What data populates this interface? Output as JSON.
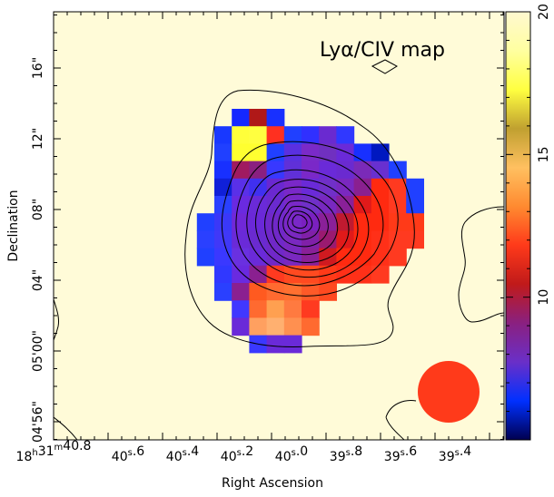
{
  "chart_data": {
    "type": "heatmap",
    "title": "Lyα/CIV map",
    "xlabel": "Right Ascension",
    "ylabel": "Declination",
    "x_ticks": [
      "18h31m40.8s",
      "40.6s",
      "40.4s",
      "40.2s",
      "40.0s",
      "39.8s",
      "39.6s",
      "39.4s"
    ],
    "x_ticks_display": [
      {
        "main": "18",
        "sup": "h",
        "main2": "31",
        "sup2": "m",
        "main3": "40.8"
      },
      {
        "main": "40",
        "sup": "s",
        "main2": ".6"
      },
      {
        "main": "40",
        "sup": "s",
        "main2": ".4"
      },
      {
        "main": "40",
        "sup": "s",
        "main2": ".2"
      },
      {
        "main": "40",
        "sup": "s",
        "main2": ".0"
      },
      {
        "main": "39",
        "sup": "s",
        "main2": ".8"
      },
      {
        "main": "39",
        "sup": "s",
        "main2": ".6"
      },
      {
        "main": "39",
        "sup": "s",
        "main2": ".4"
      }
    ],
    "y_ticks": [
      "-4°56\"",
      "-4°05'00\"",
      "04\"",
      "08\"",
      "12\"",
      "16\""
    ],
    "y_ticks_display": [
      "04'56\"",
      "05'00\"",
      "04\"",
      "08\"",
      "12\"",
      "16\""
    ],
    "colorbar": {
      "min": 5,
      "max": 20,
      "ticks": [
        10,
        15,
        20
      ],
      "colormap": [
        "#000050",
        "#0030ff",
        "#6a2fc8",
        "#8a2080",
        "#c01a1a",
        "#ff3a1a",
        "#ff8a30",
        "#ffc060",
        "#c0a030",
        "#ffff40",
        "#ffffa0",
        "#fff8d0"
      ]
    },
    "background_color": "#fffbd8",
    "beam_color": "#ff3a1a",
    "pixels": [
      {
        "col": 6,
        "row": 0,
        "color": "#1428ff"
      },
      {
        "col": 7,
        "row": 0,
        "color": "#b01818"
      },
      {
        "col": 8,
        "row": 0,
        "color": "#1830ff"
      },
      {
        "col": 5,
        "row": 1,
        "color": "#1838ff"
      },
      {
        "col": 6,
        "row": 1,
        "color": "#ffff3a"
      },
      {
        "col": 7,
        "row": 1,
        "color": "#ffff40"
      },
      {
        "col": 8,
        "row": 1,
        "color": "#ff3020"
      },
      {
        "col": 9,
        "row": 1,
        "color": "#2040ff"
      },
      {
        "col": 10,
        "row": 1,
        "color": "#3030ff"
      },
      {
        "col": 11,
        "row": 1,
        "color": "#6a2ad0"
      },
      {
        "col": 12,
        "row": 1,
        "color": "#3038ff"
      },
      {
        "col": 5,
        "row": 2,
        "color": "#2040ff"
      },
      {
        "col": 6,
        "row": 2,
        "color": "#ffff30"
      },
      {
        "col": 7,
        "row": 2,
        "color": "#ffff30"
      },
      {
        "col": 8,
        "row": 2,
        "color": "#2040ff"
      },
      {
        "col": 9,
        "row": 2,
        "color": "#5a30e0"
      },
      {
        "col": 10,
        "row": 2,
        "color": "#7a2ac8"
      },
      {
        "col": 11,
        "row": 2,
        "color": "#7030c0"
      },
      {
        "col": 12,
        "row": 2,
        "color": "#6a2ad8"
      },
      {
        "col": 13,
        "row": 2,
        "color": "#1830ff"
      },
      {
        "col": 14,
        "row": 2,
        "color": "#0018c0"
      },
      {
        "col": 5,
        "row": 3,
        "color": "#1830ff"
      },
      {
        "col": 6,
        "row": 3,
        "color": "#a01a60"
      },
      {
        "col": 7,
        "row": 3,
        "color": "#8a2080"
      },
      {
        "col": 8,
        "row": 3,
        "color": "#3838ff"
      },
      {
        "col": 9,
        "row": 3,
        "color": "#6030d8"
      },
      {
        "col": 10,
        "row": 3,
        "color": "#7a28c8"
      },
      {
        "col": 11,
        "row": 3,
        "color": "#6a2ad8"
      },
      {
        "col": 12,
        "row": 3,
        "color": "#6a2ad0"
      },
      {
        "col": 13,
        "row": 3,
        "color": "#7a2ab8"
      },
      {
        "col": 14,
        "row": 3,
        "color": "#6830d0"
      },
      {
        "col": 15,
        "row": 3,
        "color": "#2040ff"
      },
      {
        "col": 5,
        "row": 4,
        "color": "#1020d8"
      },
      {
        "col": 6,
        "row": 4,
        "color": "#5a30e8"
      },
      {
        "col": 7,
        "row": 4,
        "color": "#4030f0"
      },
      {
        "col": 8,
        "row": 4,
        "color": "#6a28d0"
      },
      {
        "col": 9,
        "row": 4,
        "color": "#7a28c8"
      },
      {
        "col": 10,
        "row": 4,
        "color": "#6a2ad8"
      },
      {
        "col": 11,
        "row": 4,
        "color": "#7030c8"
      },
      {
        "col": 12,
        "row": 4,
        "color": "#7a28c0"
      },
      {
        "col": 13,
        "row": 4,
        "color": "#8a2090"
      },
      {
        "col": 14,
        "row": 4,
        "color": "#ff2a10"
      },
      {
        "col": 15,
        "row": 4,
        "color": "#ff3a20"
      },
      {
        "col": 16,
        "row": 4,
        "color": "#2040ff"
      },
      {
        "col": 5,
        "row": 5,
        "color": "#2a40ff"
      },
      {
        "col": 6,
        "row": 5,
        "color": "#6a2ae0"
      },
      {
        "col": 7,
        "row": 5,
        "color": "#6a2ad8"
      },
      {
        "col": 8,
        "row": 5,
        "color": "#6a2ad0"
      },
      {
        "col": 9,
        "row": 5,
        "color": "#7a28c8"
      },
      {
        "col": 10,
        "row": 5,
        "color": "#7030c8"
      },
      {
        "col": 11,
        "row": 5,
        "color": "#7828c0"
      },
      {
        "col": 12,
        "row": 5,
        "color": "#8a2098"
      },
      {
        "col": 13,
        "row": 5,
        "color": "#e01a1a"
      },
      {
        "col": 14,
        "row": 5,
        "color": "#ff2a10"
      },
      {
        "col": 15,
        "row": 5,
        "color": "#ff3a20"
      },
      {
        "col": 16,
        "row": 5,
        "color": "#2040ff"
      },
      {
        "col": 4,
        "row": 6,
        "color": "#2040ff"
      },
      {
        "col": 5,
        "row": 6,
        "color": "#3a38f8"
      },
      {
        "col": 6,
        "row": 6,
        "color": "#7028d8"
      },
      {
        "col": 7,
        "row": 6,
        "color": "#6a28d8"
      },
      {
        "col": 8,
        "row": 6,
        "color": "#7028c8"
      },
      {
        "col": 9,
        "row": 6,
        "color": "#7a28c8"
      },
      {
        "col": 10,
        "row": 6,
        "color": "#7a20c0"
      },
      {
        "col": 11,
        "row": 6,
        "color": "#8a2098"
      },
      {
        "col": 12,
        "row": 6,
        "color": "#c01a30"
      },
      {
        "col": 13,
        "row": 6,
        "color": "#ff2a10"
      },
      {
        "col": 14,
        "row": 6,
        "color": "#ff2a10"
      },
      {
        "col": 15,
        "row": 6,
        "color": "#ff3a18"
      },
      {
        "col": 16,
        "row": 6,
        "color": "#ff3a18"
      },
      {
        "col": 4,
        "row": 7,
        "color": "#2a40ff"
      },
      {
        "col": 5,
        "row": 7,
        "color": "#4038f8"
      },
      {
        "col": 6,
        "row": 7,
        "color": "#6a2ad8"
      },
      {
        "col": 7,
        "row": 7,
        "color": "#6a2ad0"
      },
      {
        "col": 8,
        "row": 7,
        "color": "#7028c8"
      },
      {
        "col": 9,
        "row": 7,
        "color": "#7a28c0"
      },
      {
        "col": 10,
        "row": 7,
        "color": "#8020a8"
      },
      {
        "col": 11,
        "row": 7,
        "color": "#9a1a70"
      },
      {
        "col": 12,
        "row": 7,
        "color": "#e01a1a"
      },
      {
        "col": 13,
        "row": 7,
        "color": "#ff2a10"
      },
      {
        "col": 14,
        "row": 7,
        "color": "#ff3018"
      },
      {
        "col": 15,
        "row": 7,
        "color": "#ff3a20"
      },
      {
        "col": 16,
        "row": 7,
        "color": "#ff3a20"
      },
      {
        "col": 4,
        "row": 8,
        "color": "#2040ff"
      },
      {
        "col": 5,
        "row": 8,
        "color": "#3a38ff"
      },
      {
        "col": 6,
        "row": 8,
        "color": "#6a30e0"
      },
      {
        "col": 7,
        "row": 8,
        "color": "#6a2ad8"
      },
      {
        "col": 8,
        "row": 8,
        "color": "#7028c8"
      },
      {
        "col": 9,
        "row": 8,
        "color": "#7a28c0"
      },
      {
        "col": 10,
        "row": 8,
        "color": "#8a2098"
      },
      {
        "col": 11,
        "row": 8,
        "color": "#d01a20"
      },
      {
        "col": 12,
        "row": 8,
        "color": "#ff2a10"
      },
      {
        "col": 13,
        "row": 8,
        "color": "#ff2a10"
      },
      {
        "col": 14,
        "row": 8,
        "color": "#ff3018"
      },
      {
        "col": 15,
        "row": 8,
        "color": "#ff3a20"
      },
      {
        "col": 5,
        "row": 9,
        "color": "#3038ff"
      },
      {
        "col": 6,
        "row": 9,
        "color": "#6a2ae0"
      },
      {
        "col": 7,
        "row": 9,
        "color": "#8a2090"
      },
      {
        "col": 8,
        "row": 9,
        "color": "#ff3a20"
      },
      {
        "col": 9,
        "row": 9,
        "color": "#ff4a20"
      },
      {
        "col": 10,
        "row": 9,
        "color": "#ff4a20"
      },
      {
        "col": 11,
        "row": 9,
        "color": "#ff3a18"
      },
      {
        "col": 12,
        "row": 9,
        "color": "#ff3018"
      },
      {
        "col": 13,
        "row": 9,
        "color": "#ff3018"
      },
      {
        "col": 14,
        "row": 9,
        "color": "#ff3a20"
      },
      {
        "col": 5,
        "row": 10,
        "color": "#2a40ff"
      },
      {
        "col": 6,
        "row": 10,
        "color": "#8a2090"
      },
      {
        "col": 7,
        "row": 10,
        "color": "#ff5a20"
      },
      {
        "col": 8,
        "row": 10,
        "color": "#ff6a30"
      },
      {
        "col": 9,
        "row": 10,
        "color": "#ff7030"
      },
      {
        "col": 10,
        "row": 10,
        "color": "#ff5a28"
      },
      {
        "col": 11,
        "row": 10,
        "color": "#ff4a20"
      },
      {
        "col": 6,
        "row": 11,
        "color": "#4038ff"
      },
      {
        "col": 7,
        "row": 11,
        "color": "#ff6a30"
      },
      {
        "col": 8,
        "row": 11,
        "color": "#ffa050"
      },
      {
        "col": 9,
        "row": 11,
        "color": "#ff7a40"
      },
      {
        "col": 10,
        "row": 11,
        "color": "#ff3a20"
      },
      {
        "col": 6,
        "row": 12,
        "color": "#6a2ad8"
      },
      {
        "col": 7,
        "row": 12,
        "color": "#ffa060"
      },
      {
        "col": 8,
        "row": 12,
        "color": "#ffb070"
      },
      {
        "col": 9,
        "row": 12,
        "color": "#ff9050"
      },
      {
        "col": 10,
        "row": 12,
        "color": "#ff6a30"
      },
      {
        "col": 7,
        "row": 13,
        "color": "#3a38ff"
      },
      {
        "col": 8,
        "row": 13,
        "color": "#6a2ad8"
      },
      {
        "col": 9,
        "row": 13,
        "color": "#6a2ad8"
      }
    ]
  }
}
